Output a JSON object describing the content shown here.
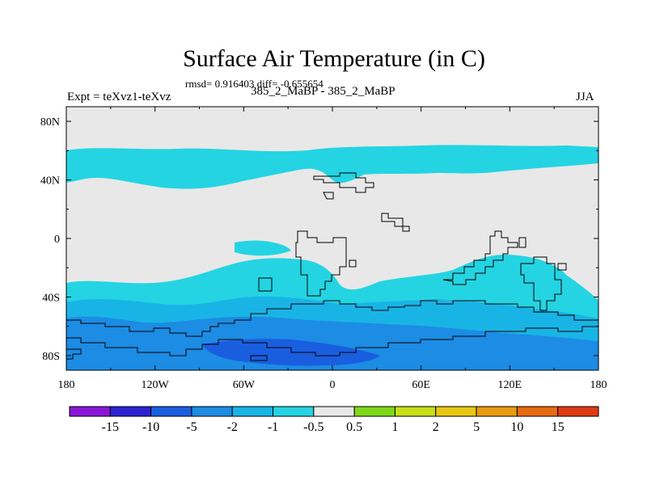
{
  "chart_data": {
    "type": "heatmap",
    "title": "Surface Air Temperature (in C)",
    "stats_text": "rmsd= 0.916403 diff= -0.655654",
    "left_label": "Expt = teXvz1-teXvz",
    "subtitle": "385_2_MaBP - 385_2_MaBP",
    "right_label": "JJA",
    "x_axis": {
      "ticks": [
        -180,
        -120,
        -60,
        0,
        60,
        120,
        180
      ],
      "labels": [
        "180",
        "120W",
        "60W",
        "0",
        "60E",
        "120E",
        "180"
      ]
    },
    "y_axis": {
      "ticks": [
        80,
        40,
        0,
        -40,
        -80
      ],
      "labels": [
        "80N",
        "40N",
        "0",
        "40S",
        "80S"
      ],
      "range": [
        -90,
        90
      ]
    },
    "colorbar": {
      "colors": [
        "#8a17d8",
        "#2c22d0",
        "#1a5ee0",
        "#1c8ce4",
        "#19b4e6",
        "#24d4e2",
        "#e8e8e8",
        "#7ed81a",
        "#c8de18",
        "#e8c614",
        "#e89a10",
        "#e86a10",
        "#e03a14"
      ],
      "labels": [
        "-15",
        "-10",
        "-5",
        "-2",
        "-1",
        "-0.5",
        "0.5",
        "1",
        "2",
        "5",
        "10",
        "15"
      ]
    }
  }
}
